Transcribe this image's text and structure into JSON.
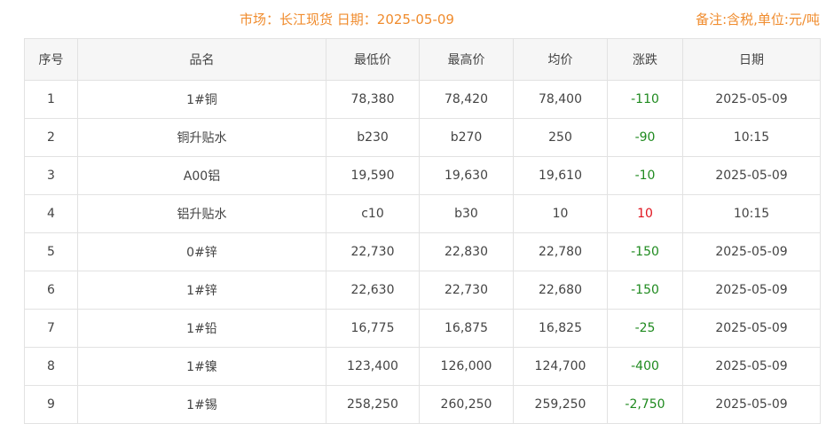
{
  "header": {
    "title": "市场：长江现货   日期：2025-05-09",
    "note": "备注:含税,单位:元/吨"
  },
  "columns": [
    "序号",
    "品名",
    "最低价",
    "最高价",
    "均价",
    "涨跌",
    "日期"
  ],
  "colors": {
    "up": "#e0141e",
    "down": "#1f8a1f",
    "accent": "#f08c2e"
  },
  "rows": [
    [
      "1",
      "1#铜",
      "78,380",
      "78,420",
      "78,400",
      "-110",
      "2025-05-09"
    ],
    [
      "2",
      "铜升贴水",
      "b230",
      "b270",
      "250",
      "-90",
      "10:15"
    ],
    [
      "3",
      "A00铝",
      "19,590",
      "19,630",
      "19,610",
      "-10",
      "2025-05-09"
    ],
    [
      "4",
      "铝升贴水",
      "c10",
      "b30",
      "10",
      "10",
      "10:15"
    ],
    [
      "5",
      "0#锌",
      "22,730",
      "22,830",
      "22,780",
      "-150",
      "2025-05-09"
    ],
    [
      "6",
      "1#锌",
      "22,630",
      "22,730",
      "22,680",
      "-150",
      "2025-05-09"
    ],
    [
      "7",
      "1#铅",
      "16,775",
      "16,875",
      "16,825",
      "-25",
      "2025-05-09"
    ],
    [
      "8",
      "1#镍",
      "123,400",
      "126,000",
      "124,700",
      "-400",
      "2025-05-09"
    ],
    [
      "9",
      "1#锡",
      "258,250",
      "260,250",
      "259,250",
      "-2,750",
      "2025-05-09"
    ]
  ]
}
